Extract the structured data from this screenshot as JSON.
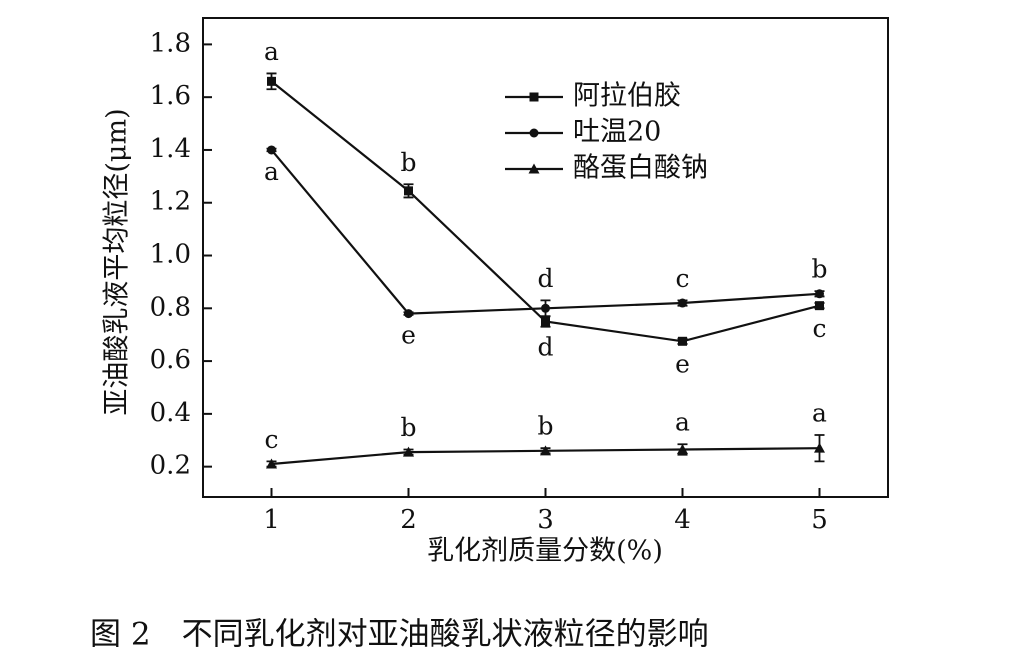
{
  "chart_data": {
    "type": "line",
    "x_label": "乳化剂质量分数(%)",
    "y_label": "亚油酸乳液平均粒径(μm)",
    "caption": "图 2　不同乳化剂对亚油酸乳状液粒径的影响",
    "x": [
      1,
      2,
      3,
      4,
      5
    ],
    "xlim": [
      0.5,
      5.5
    ],
    "xticks": [
      1,
      2,
      3,
      4,
      5
    ],
    "ylim": [
      0.085,
      1.9
    ],
    "yticks": [
      0.2,
      0.4,
      0.6,
      0.8,
      {
        "value": 1,
        "label": "1.0"
      },
      1.2,
      1.4,
      1.6,
      1.8
    ],
    "legend": "top-right",
    "series": [
      {
        "name": "阿拉伯胶",
        "color": "#111111",
        "marker": "square",
        "values": [
          1.66,
          1.245,
          0.75,
          0.675,
          0.81
        ],
        "errors": [
          0.03,
          0.025,
          0.02,
          0.01,
          0.01
        ],
        "letters": [
          "a",
          "b",
          "d",
          "e",
          "c"
        ]
      },
      {
        "name": "吐温20",
        "color": "#111111",
        "marker": "circle",
        "values": [
          1.4,
          0.78,
          0.8,
          0.82,
          0.855
        ],
        "errors": [
          0.005,
          0.005,
          0.03,
          0.01,
          0.01
        ],
        "letters": [
          "a",
          "e",
          "d",
          "c",
          "b"
        ]
      },
      {
        "name": "酪蛋白酸钠",
        "color": "#111111",
        "marker": "triangle",
        "values": [
          0.21,
          0.255,
          0.26,
          0.265,
          0.27
        ],
        "errors": [
          0.01,
          0.01,
          0.01,
          0.02,
          0.05
        ],
        "letters": [
          "c",
          "b",
          "b",
          "a",
          "a"
        ]
      }
    ]
  }
}
